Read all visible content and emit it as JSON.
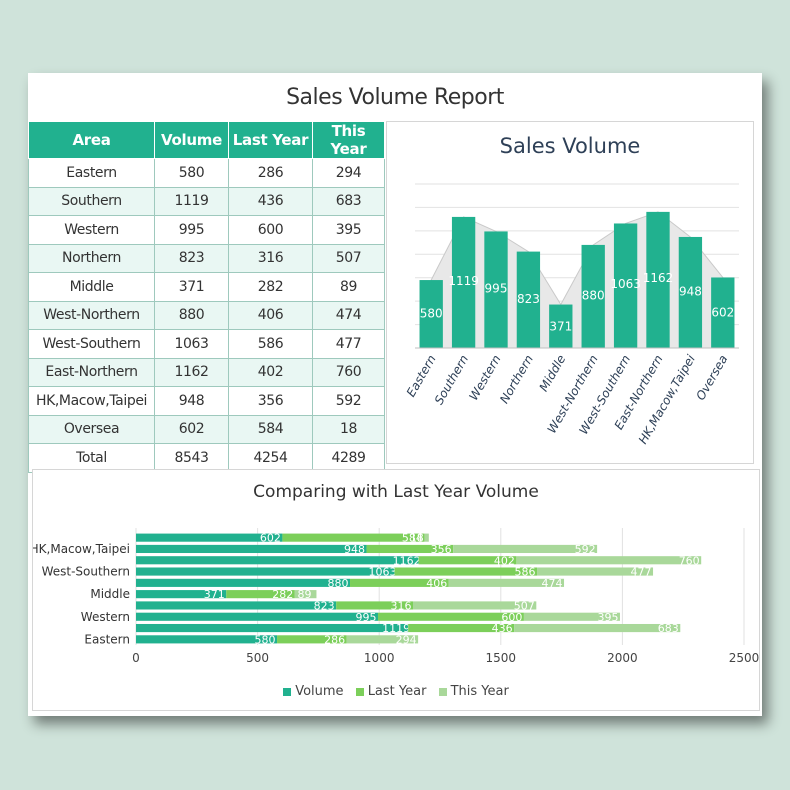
{
  "report": {
    "title": "Sales Volume Report"
  },
  "table": {
    "headers": [
      "Area",
      "Volume",
      "Last Year",
      "This Year"
    ],
    "rows": [
      [
        "Eastern",
        "580",
        "286",
        "294"
      ],
      [
        "Southern",
        "1119",
        "436",
        "683"
      ],
      [
        "Western",
        "995",
        "600",
        "395"
      ],
      [
        "Northern",
        "823",
        "316",
        "507"
      ],
      [
        "Middle",
        "371",
        "282",
        "89"
      ],
      [
        "West-Northern",
        "880",
        "406",
        "474"
      ],
      [
        "West-Southern",
        "1063",
        "586",
        "477"
      ],
      [
        "East-Northern",
        "1162",
        "402",
        "760"
      ],
      [
        "HK,Macow,Taipei",
        "948",
        "356",
        "592"
      ],
      [
        "Oversea",
        "602",
        "584",
        "18"
      ],
      [
        "Total",
        "8543",
        "4254",
        "4289"
      ]
    ]
  },
  "colors": {
    "volume": "#21b18f",
    "last_year": "#7ccf5a",
    "this_year": "#a9d89a",
    "header": "#21b18f",
    "alt_row": "#e9f7f3"
  },
  "chart_data": [
    {
      "type": "bar",
      "title": "Sales Volume",
      "categories": [
        "Eastern",
        "Southern",
        "Western",
        "Northern",
        "Middle",
        "West-Northern",
        "West-Southern",
        "East-Northern",
        "HK,Macow,Taipei",
        "Oversea"
      ],
      "series": [
        {
          "values": [
            580,
            1119,
            995,
            823,
            371,
            880,
            1063,
            1162,
            948,
            602
          ]
        }
      ],
      "ylim": [
        0,
        1400
      ],
      "grid": true,
      "data_labels": true
    },
    {
      "type": "bar",
      "orientation": "horizontal",
      "stacked": true,
      "title": "Comparing with Last Year Volume",
      "categories": [
        "Eastern",
        "Southern",
        "Western",
        "Northern",
        "Middle",
        "West-Northern",
        "West-Southern",
        "East-Northern",
        "HK,Macow,Taipei",
        "Oversea"
      ],
      "visible_category_labels": [
        "Eastern",
        "Western",
        "Middle",
        "West-Southern",
        "HK,Macow,Taipei"
      ],
      "series": [
        {
          "name": "Volume",
          "values": [
            580,
            1119,
            995,
            823,
            371,
            880,
            1063,
            1162,
            948,
            602
          ]
        },
        {
          "name": "Last Year",
          "values": [
            286,
            436,
            600,
            316,
            282,
            406,
            586,
            402,
            356,
            584
          ]
        },
        {
          "name": "This Year",
          "values": [
            294,
            683,
            395,
            507,
            89,
            474,
            477,
            760,
            592,
            18
          ]
        }
      ],
      "xlim": [
        0,
        2500
      ],
      "xticks": [
        0,
        500,
        1000,
        1500,
        2000,
        2500
      ],
      "legend": "bottom",
      "grid": true
    }
  ]
}
